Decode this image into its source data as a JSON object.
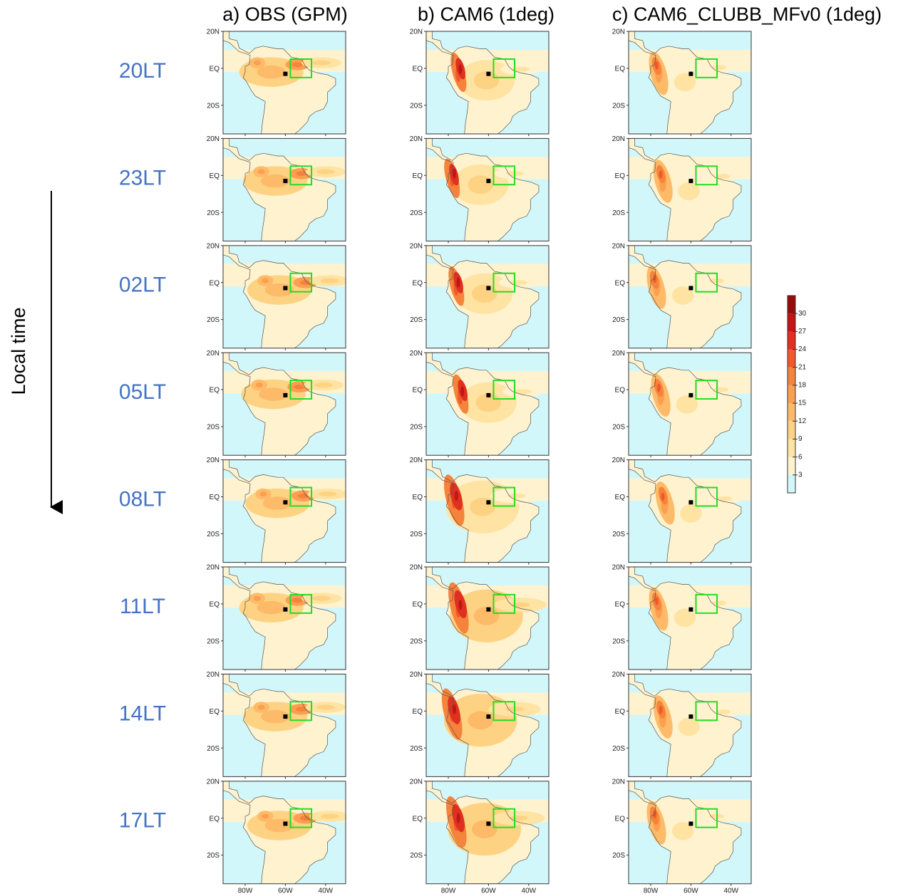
{
  "column_titles": [
    "a) OBS (GPM)",
    "b) CAM6 (1deg)",
    "c) CAM6_CLUBB_MFv0 (1deg)"
  ],
  "row_labels": [
    "20LT",
    "23LT",
    "02LT",
    "05LT",
    "08LT",
    "11LT",
    "14LT",
    "17LT"
  ],
  "side_label": "Local time",
  "map": {
    "xlim": [
      -91,
      -30
    ],
    "ylim": [
      -35.5,
      20
    ],
    "xticks": [
      {
        "value": -80,
        "label": "80W"
      },
      {
        "value": -60,
        "label": "60W"
      },
      {
        "value": -40,
        "label": "40W"
      }
    ],
    "yticks": [
      {
        "value": 20,
        "label": "20N"
      },
      {
        "value": 0,
        "label": "EQ"
      },
      {
        "value": -20,
        "label": "20S"
      }
    ]
  },
  "colorbar": {
    "clim": [
      0,
      33
    ],
    "ticks": [
      3,
      6,
      9,
      12,
      15,
      18,
      21,
      24,
      27,
      30
    ],
    "colors": [
      "#d2f7fa",
      "#fff3cf",
      "#ffe3a3",
      "#fed283",
      "#fdbb69",
      "#fb9f50",
      "#f6833c",
      "#ef5a29",
      "#de311f",
      "#bf1616",
      "#990b0b"
    ]
  }
}
